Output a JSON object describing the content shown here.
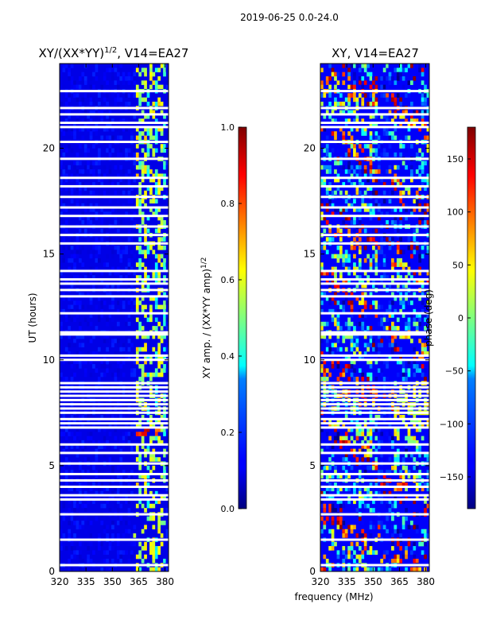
{
  "suptitle": "2019-06-25 0.0-24.0",
  "chart_data": [
    {
      "type": "heatmap",
      "title": "XY/(XX*YY)",
      "title_superscript": "1/2",
      "title_suffix": ", V14=EA27",
      "xlabel": "",
      "ylabel": "UT (hours)",
      "xlim": [
        320,
        382
      ],
      "ylim": [
        0,
        24
      ],
      "xticks": [
        320,
        335,
        350,
        365,
        380
      ],
      "yticks": [
        0,
        5,
        10,
        15,
        20
      ],
      "colorbar": {
        "label": "XY amp. / (XX*YY amp)",
        "label_superscript": "1/2",
        "range": [
          0.0,
          1.0
        ],
        "ticks": [
          "0.0",
          "0.2",
          "0.4",
          "0.6",
          "0.8",
          "1.0"
        ],
        "tick_values": [
          0.0,
          0.2,
          0.4,
          0.6,
          0.8,
          1.0
        ]
      },
      "description_values": {
        "background_level": 0.1,
        "band_365_380_level": 0.45,
        "hot_spot": {
          "x": [
            363,
            378
          ],
          "y": [
            6.4,
            6.7
          ],
          "level": 0.85
        }
      },
      "flagged_rows_hours": [
        0.3,
        1.5,
        2.7,
        3.4,
        3.6,
        4.0,
        4.3,
        4.6,
        5.1,
        5.6,
        6.0,
        6.8,
        7.0,
        7.2,
        7.5,
        7.7,
        7.9,
        8.1,
        8.3,
        8.5,
        8.7,
        8.9,
        10.0,
        10.2,
        11.2,
        11.3,
        12.2,
        13.0,
        13.3,
        13.6,
        13.8,
        14.2,
        15.5,
        15.9,
        16.3,
        16.8,
        17.2,
        17.7,
        18.2,
        18.6,
        19.5,
        20.3,
        21.0,
        21.2,
        21.6,
        21.9,
        22.7
      ]
    },
    {
      "type": "heatmap",
      "title": "XY, V14=EA27",
      "xlabel": "frequency (MHz)",
      "ylabel": "",
      "xlim": [
        320,
        382
      ],
      "ylim": [
        0,
        24
      ],
      "xticks": [
        320,
        335,
        350,
        365,
        380
      ],
      "yticks": [
        0,
        5,
        10,
        15,
        20
      ],
      "colorbar": {
        "label": "phase (deg)",
        "range": [
          -180,
          180
        ],
        "ticks": [
          "150",
          "100",
          "50",
          "0",
          "−50",
          "−100",
          "−150"
        ],
        "tick_values": [
          150,
          100,
          50,
          0,
          -50,
          -100,
          -150
        ]
      },
      "flagged_rows_hours": [
        0.3,
        1.5,
        2.7,
        3.4,
        3.6,
        4.0,
        4.3,
        4.6,
        5.1,
        5.6,
        6.0,
        6.8,
        7.0,
        7.2,
        7.5,
        7.7,
        7.9,
        8.1,
        8.3,
        8.5,
        8.7,
        8.9,
        10.0,
        10.2,
        11.2,
        11.3,
        12.2,
        13.0,
        13.3,
        13.6,
        13.8,
        14.2,
        15.5,
        15.9,
        16.3,
        16.8,
        17.2,
        17.7,
        18.2,
        18.6,
        19.5,
        20.3,
        21.0,
        21.2,
        21.6,
        21.9,
        22.7
      ]
    }
  ]
}
